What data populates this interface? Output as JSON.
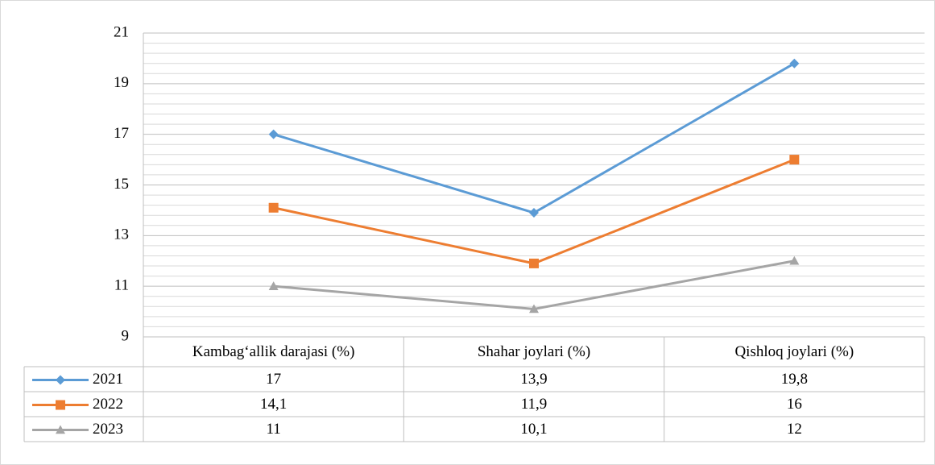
{
  "chart_data": {
    "type": "line",
    "categories": [
      "Kambag‘allik darajasi (%)",
      "Shahar joylari (%)",
      "Qishloq joylari (%)"
    ],
    "series": [
      {
        "name": "2021",
        "color": "#5b9bd5",
        "marker": "diamond",
        "values": [
          17,
          13.9,
          19.8
        ],
        "value_labels": [
          "17",
          "13,9",
          "19,8"
        ]
      },
      {
        "name": "2022",
        "color": "#ed7d31",
        "marker": "square",
        "values": [
          14.1,
          11.9,
          16
        ],
        "value_labels": [
          "14,1",
          "11,9",
          "16"
        ]
      },
      {
        "name": "2023",
        "color": "#a5a5a5",
        "marker": "triangle",
        "values": [
          11,
          10.1,
          12
        ],
        "value_labels": [
          "11",
          "10,1",
          "12"
        ]
      }
    ],
    "ylim": [
      9,
      21
    ],
    "yticks": [
      9,
      11,
      13,
      15,
      17,
      19,
      21
    ],
    "minor_yticks": [
      9.4,
      9.8,
      10.2,
      10.6,
      11.4,
      11.8,
      12.2,
      12.6,
      13.4,
      13.8,
      14.2,
      14.6,
      15.4,
      15.8,
      16.2,
      16.6,
      17.4,
      17.8,
      18.2,
      18.6,
      19.4,
      19.8,
      20.2,
      20.6
    ],
    "grid": true,
    "data_table": true
  }
}
